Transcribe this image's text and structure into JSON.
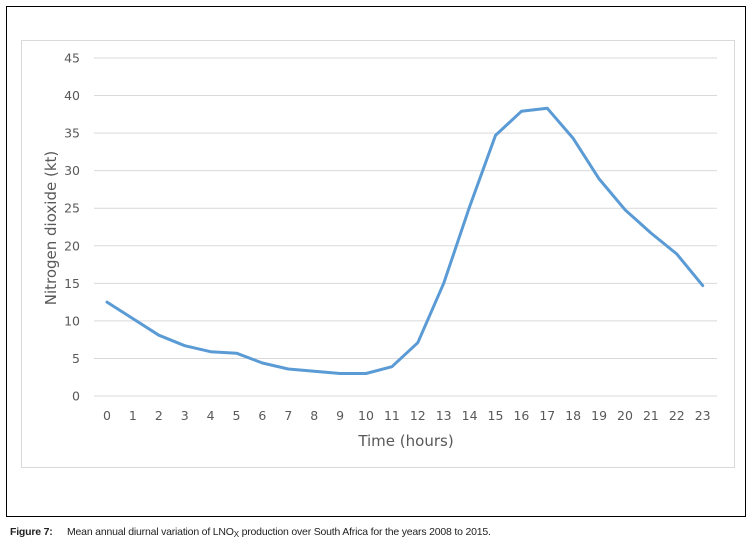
{
  "caption": {
    "label": "Figure 7:",
    "text_before": "Mean annual diurnal variation of LNO",
    "subscript": "X",
    "text_after": " production over South Africa for the years 2008 to 2015."
  },
  "chart_data": {
    "type": "line",
    "title": "",
    "xlabel": "Time (hours)",
    "ylabel": "Nitrogen dioxide (kt)",
    "ylim": [
      0,
      45
    ],
    "yticks": [
      0,
      5,
      10,
      15,
      20,
      25,
      30,
      35,
      40,
      45
    ],
    "grid": true,
    "legend": "none",
    "line_color": "#5b9bd5",
    "categories": [
      "0",
      "1",
      "2",
      "3",
      "4",
      "5",
      "6",
      "7",
      "8",
      "9",
      "10",
      "11",
      "12",
      "13",
      "14",
      "15",
      "16",
      "17",
      "18",
      "19",
      "20",
      "21",
      "22",
      "23"
    ],
    "series": [
      {
        "values": [
          12.5,
          10.3,
          8.1,
          6.7,
          5.9,
          5.7,
          4.4,
          3.6,
          3.3,
          3.0,
          3.0,
          3.9,
          7.1,
          15.0,
          25.2,
          34.7,
          37.9,
          38.3,
          34.3,
          28.9,
          24.8,
          21.7,
          18.9,
          14.7
        ]
      }
    ]
  }
}
